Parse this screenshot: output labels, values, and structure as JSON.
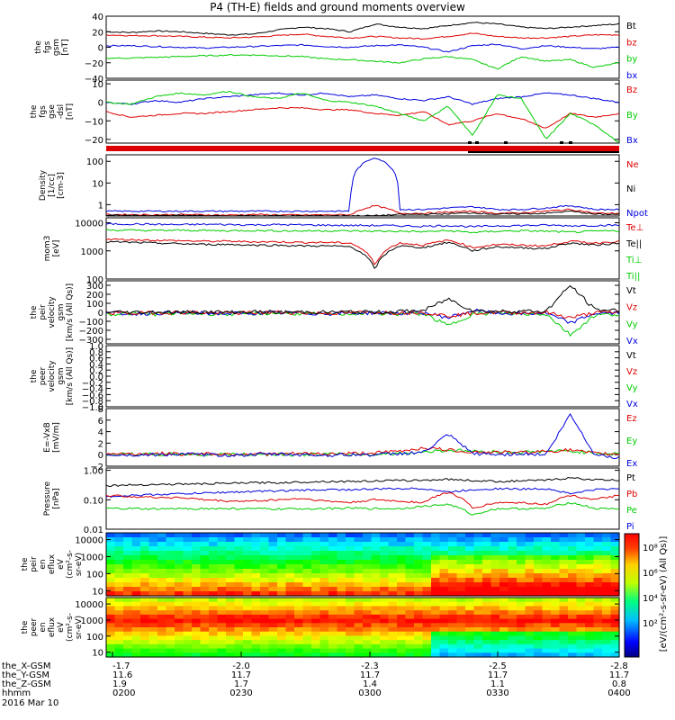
{
  "title": "P4 (TH-E) fields and ground moments overview",
  "footer": {
    "rows": [
      {
        "label": "the_X-GSM",
        "values": [
          "-1.7",
          "-2.0",
          "-2.3",
          "-2.5",
          "-2.8"
        ]
      },
      {
        "label": "the_Y-GSM",
        "values": [
          "11.6",
          "11.7",
          "11.7",
          "11.7",
          "11.7"
        ]
      },
      {
        "label": "the_Z-GSM",
        "values": [
          "1.9",
          "1.7",
          "1.4",
          "1.1",
          "0.8"
        ]
      },
      {
        "label": "hhmm",
        "values": [
          "0200",
          "0230",
          "0300",
          "0330",
          "0400"
        ]
      }
    ],
    "date": "2016 Mar 10"
  },
  "colorbar": {
    "ticks": [
      "10⁸",
      "10⁶",
      "10⁴",
      "10²"
    ],
    "label": "[eV/(cm²-s-sr-eV)]",
    "label_overlay": "[eV/(cm²-s-sr-eV) (All Qs)]"
  },
  "chart_data": [
    {
      "type": "line",
      "ylabel": [
        "the",
        "fgs",
        "gsm",
        "[nT]"
      ],
      "yticks": [
        "40",
        "20",
        "0",
        "−20",
        "−40"
      ],
      "ylim": [
        -40,
        40
      ],
      "legend": [
        {
          "text": "Bt",
          "color": "#000000"
        },
        {
          "text": "bz",
          "color": "#dd0000"
        },
        {
          "text": "by",
          "color": "#00cc00"
        },
        {
          "text": "bx",
          "color": "#0000dd"
        }
      ],
      "series": [
        {
          "color": "#000000",
          "values": [
            20,
            19,
            21,
            20,
            18,
            16,
            17,
            22,
            26,
            24,
            20,
            30,
            26,
            24,
            28,
            32,
            30,
            26,
            24,
            26,
            28,
            30
          ]
        },
        {
          "color": "#dd0000",
          "values": [
            16,
            15,
            15,
            14,
            13,
            12,
            13,
            15,
            17,
            14,
            12,
            14,
            12,
            11,
            14,
            18,
            14,
            12,
            12,
            14,
            16,
            16
          ]
        },
        {
          "color": "#0000dd",
          "values": [
            2,
            2,
            1,
            0,
            -1,
            0,
            1,
            2,
            3,
            1,
            0,
            2,
            3,
            0,
            -6,
            2,
            4,
            -2,
            2,
            0,
            -2,
            0
          ]
        },
        {
          "color": "#00cc00",
          "values": [
            -14,
            -14,
            -13,
            -12,
            -11,
            -10,
            -10,
            -11,
            -12,
            -15,
            -16,
            -18,
            -20,
            -15,
            -12,
            -16,
            -28,
            -12,
            -18,
            -16,
            -26,
            -20
          ]
        }
      ]
    },
    {
      "type": "line",
      "ylabel": [
        "the",
        "fgs",
        "gse",
        "-dsl",
        "[nT]"
      ],
      "yticks": [
        "10",
        "0",
        "−10",
        "−20"
      ],
      "ylim": [
        -22,
        12
      ],
      "legend": [
        {
          "text": "Bz",
          "color": "#dd0000"
        },
        {
          "text": "By",
          "color": "#00cc00"
        },
        {
          "text": "Bx",
          "color": "#0000dd"
        }
      ],
      "series": [
        {
          "color": "#0000dd",
          "values": [
            0,
            -1,
            1,
            0,
            2,
            3,
            4,
            5,
            4,
            5,
            3,
            4,
            2,
            1,
            3,
            -1,
            2,
            3,
            5,
            4,
            2,
            0
          ]
        },
        {
          "color": "#dd0000",
          "values": [
            -5,
            -8,
            -7,
            -6,
            -6,
            -5,
            -4,
            -3,
            -3,
            -4,
            -4,
            -6,
            -7,
            -5,
            -12,
            -10,
            -6,
            -9,
            -14,
            -6,
            -8,
            -6
          ]
        },
        {
          "color": "#00cc00",
          "values": [
            0,
            -1,
            3,
            5,
            4,
            6,
            3,
            2,
            5,
            1,
            0,
            -2,
            -6,
            -10,
            -2,
            -18,
            4,
            2,
            -20,
            -6,
            -12,
            -22
          ]
        }
      ]
    },
    {
      "type": "line",
      "ylabel": [
        "Density",
        "[1/cc]",
        "[cm-3]"
      ],
      "yticks": [
        "100",
        "10",
        "1"
      ],
      "yscale": "log",
      "ylim": [
        0.3,
        200
      ],
      "legend": [
        {
          "text": "Ne",
          "color": "#dd0000"
        },
        {
          "text": "Ni",
          "color": "#000000"
        },
        {
          "text": "Npot",
          "color": "#0000dd"
        }
      ],
      "series": [
        {
          "color": "#0000dd",
          "values": [
            0.5,
            0.5,
            0.5,
            0.5,
            0.5,
            0.5,
            0.5,
            0.5,
            0.5,
            0.5,
            0.5,
            150,
            0.6,
            0.6,
            0.7,
            0.8,
            0.6,
            0.6,
            0.7,
            0.9,
            0.6,
            0.6
          ]
        },
        {
          "color": "#dd0000",
          "values": [
            0.35,
            0.35,
            0.34,
            0.35,
            0.34,
            0.33,
            0.35,
            0.34,
            0.33,
            0.34,
            0.34,
            0.9,
            0.4,
            0.4,
            0.45,
            0.5,
            0.4,
            0.42,
            0.5,
            0.6,
            0.4,
            0.4
          ]
        },
        {
          "color": "#000000",
          "values": [
            0.32,
            0.32,
            0.31,
            0.32,
            0.31,
            0.3,
            0.31,
            0.31,
            0.3,
            0.31,
            0.31,
            0.31,
            0.35,
            0.36,
            0.38,
            0.42,
            0.36,
            0.38,
            0.4,
            0.5,
            0.36,
            0.36
          ]
        }
      ]
    },
    {
      "type": "line",
      "ylabel": [
        "mom3",
        "[eV]"
      ],
      "yticks": [
        "10000",
        "1000",
        "100"
      ],
      "yscale": "log",
      "ylim": [
        100,
        15000
      ],
      "legend": [
        {
          "text": "Te⊥",
          "color": "#dd0000"
        },
        {
          "text": "Te||",
          "color": "#000000"
        },
        {
          "text": "Ti⊥",
          "color": "#00cc00"
        },
        {
          "text": "Ti||",
          "color": "#00cc00"
        }
      ],
      "series": [
        {
          "color": "#0000dd",
          "values": [
            9000,
            9000,
            8800,
            8500,
            8800,
            8600,
            8400,
            8600,
            8400,
            8200,
            8000,
            8000,
            7800,
            7500,
            8000,
            7200,
            7800,
            8000,
            8200,
            7800,
            8000,
            8200
          ]
        },
        {
          "color": "#00cc00",
          "values": [
            5500,
            5400,
            5300,
            5400,
            5300,
            5200,
            5300,
            5200,
            5100,
            5200,
            5100,
            5000,
            5000,
            4800,
            5200,
            4500,
            5000,
            5200,
            5000,
            4600,
            5000,
            5200
          ]
        },
        {
          "color": "#dd0000",
          "values": [
            2600,
            2500,
            2400,
            2300,
            2200,
            2200,
            2100,
            2100,
            2000,
            2000,
            1900,
            300,
            1900,
            1600,
            2400,
            1300,
            1700,
            1600,
            1500,
            2200,
            1900,
            2200
          ]
        },
        {
          "color": "#000000",
          "values": [
            2100,
            2000,
            1900,
            1800,
            1700,
            1700,
            1600,
            1600,
            1500,
            1500,
            1400,
            200,
            1500,
            1300,
            2000,
            1000,
            1400,
            1300,
            1200,
            1900,
            1600,
            1900
          ]
        }
      ]
    },
    {
      "type": "line",
      "ylabel": [
        "the",
        "peir",
        "velocity",
        "gsm",
        "[km/s (All Qs)]"
      ],
      "yticks": [
        "300",
        "200",
        "100",
        "0",
        "−100",
        "−200",
        "−300"
      ],
      "ylim": [
        -350,
        350
      ],
      "legend": [
        {
          "text": "Vt",
          "color": "#000000"
        },
        {
          "text": "Vz",
          "color": "#dd0000"
        },
        {
          "text": "Vy",
          "color": "#00cc00"
        },
        {
          "text": "Vx",
          "color": "#0000dd"
        }
      ],
      "series": [
        {
          "color": "#00cc00",
          "values": [
            -20,
            -15,
            -20,
            -10,
            -15,
            -20,
            -15,
            -10,
            -15,
            -20,
            -15,
            -10,
            -20,
            -15,
            -150,
            -20,
            -10,
            -20,
            -15,
            -250,
            -30,
            -20
          ]
        },
        {
          "color": "#0000dd",
          "values": [
            -10,
            -15,
            -10,
            -5,
            -10,
            -15,
            -10,
            -5,
            -10,
            -15,
            -10,
            -5,
            -10,
            -5,
            -60,
            20,
            -10,
            -15,
            -10,
            -120,
            -10,
            -10
          ]
        },
        {
          "color": "#dd0000",
          "values": [
            -5,
            -10,
            -5,
            0,
            -5,
            -10,
            -5,
            0,
            -5,
            -10,
            -5,
            0,
            -5,
            0,
            -40,
            -10,
            0,
            -5,
            0,
            -60,
            -5,
            0
          ]
        },
        {
          "color": "#000000",
          "values": [
            5,
            0,
            5,
            0,
            5,
            0,
            5,
            0,
            5,
            0,
            5,
            0,
            10,
            20,
            150,
            20,
            10,
            15,
            10,
            300,
            30,
            20
          ]
        }
      ]
    },
    {
      "type": "line",
      "ylabel": [
        "the",
        "peer",
        "velocity",
        "gsm",
        "[km/s (All Qs)]"
      ],
      "yticks": [
        "1.0",
        "0.8",
        "0.6",
        "0.4",
        "0.2",
        "0.0",
        "−0.2",
        "−0.4",
        "−0.6",
        "−0.8",
        "−1.0"
      ],
      "ylim": [
        -1,
        1
      ],
      "legend": [
        {
          "text": "Vt",
          "color": "#000000"
        },
        {
          "text": "Vz",
          "color": "#dd0000"
        },
        {
          "text": "Vy",
          "color": "#00cc00"
        },
        {
          "text": "Vx",
          "color": "#0000dd"
        }
      ],
      "series": []
    },
    {
      "type": "line",
      "ylabel": [
        "E=-VxB",
        "[mV/m]"
      ],
      "yticks": [
        "8",
        "6",
        "4",
        "2",
        "0",
        "−2"
      ],
      "ylim": [
        -2,
        8
      ],
      "legend": [
        {
          "text": "Ez",
          "color": "#dd0000"
        },
        {
          "text": "Ey",
          "color": "#00cc00"
        },
        {
          "text": "Ex",
          "color": "#0000dd"
        }
      ],
      "series": [
        {
          "color": "#00cc00",
          "values": [
            0,
            0.1,
            0,
            0.1,
            0,
            0.1,
            0,
            0.1,
            0,
            0.1,
            0,
            0.1,
            0.2,
            0.5,
            0.8,
            0.6,
            0.5,
            0.4,
            0.6,
            0.6,
            0.3,
            0.1
          ]
        },
        {
          "color": "#dd0000",
          "values": [
            0.2,
            0.1,
            0.2,
            0.1,
            0.2,
            0.1,
            0.2,
            0.1,
            0.2,
            0.1,
            0.2,
            0.3,
            0.6,
            1.2,
            0.8,
            0.5,
            0.4,
            0.4,
            0.6,
            0.8,
            0.2,
            0.1
          ]
        },
        {
          "color": "#0000dd",
          "values": [
            0,
            -0.1,
            0,
            0.1,
            0,
            -0.1,
            0,
            0.1,
            0,
            -0.1,
            0,
            0,
            0.2,
            0.4,
            3.5,
            0.2,
            0,
            0.2,
            0,
            7,
            0,
            -0.5
          ]
        }
      ]
    },
    {
      "type": "line",
      "ylabel": [
        "Pressure",
        "[nPa]"
      ],
      "yticks": [
        "1.00",
        "0.10",
        "0.01"
      ],
      "yscale": "log",
      "ylim": [
        0.01,
        1.2
      ],
      "legend": [
        {
          "text": "Pt",
          "color": "#000000"
        },
        {
          "text": "Pb",
          "color": "#dd0000"
        },
        {
          "text": "Pe",
          "color": "#00cc00"
        },
        {
          "text": "Pi",
          "color": "#0000dd"
        }
      ],
      "series": [
        {
          "color": "#000000",
          "values": [
            0.3,
            0.32,
            0.33,
            0.34,
            0.35,
            0.36,
            0.38,
            0.38,
            0.4,
            0.42,
            0.42,
            0.44,
            0.45,
            0.46,
            0.5,
            0.45,
            0.42,
            0.44,
            0.46,
            0.55,
            0.48,
            0.46
          ]
        },
        {
          "color": "#0000dd",
          "values": [
            0.13,
            0.14,
            0.15,
            0.16,
            0.17,
            0.18,
            0.19,
            0.2,
            0.21,
            0.22,
            0.22,
            0.23,
            0.24,
            0.24,
            0.18,
            0.22,
            0.24,
            0.23,
            0.24,
            0.16,
            0.22,
            0.24
          ]
        },
        {
          "color": "#dd0000",
          "values": [
            0.14,
            0.13,
            0.12,
            0.12,
            0.1,
            0.09,
            0.09,
            0.1,
            0.11,
            0.09,
            0.08,
            0.1,
            0.09,
            0.08,
            0.18,
            0.05,
            0.08,
            0.08,
            0.07,
            0.14,
            0.1,
            0.14
          ]
        },
        {
          "color": "#00cc00",
          "values": [
            0.05,
            0.05,
            0.048,
            0.05,
            0.05,
            0.05,
            0.05,
            0.048,
            0.05,
            0.05,
            0.052,
            0.05,
            0.05,
            0.06,
            0.07,
            0.03,
            0.05,
            0.05,
            0.05,
            0.08,
            0.05,
            0.05
          ]
        }
      ]
    },
    {
      "type": "heatmap",
      "ylabel": [
        "the",
        "peir",
        "en",
        "eflux",
        "eV",
        "(cm²-s-",
        "sr-eV)"
      ],
      "yticks": [
        "10000",
        "1000",
        "100",
        "10"
      ],
      "yscale": "log",
      "ylim": [
        5,
        25000
      ],
      "legend": []
    },
    {
      "type": "heatmap",
      "ylabel": [
        "the",
        "peer",
        "en",
        "eflux",
        "eV",
        "(cm²-s-",
        "sr-eV)"
      ],
      "yticks": [
        "10000",
        "1000",
        "100",
        "10"
      ],
      "yscale": "log",
      "ylim": [
        5,
        25000
      ],
      "legend": []
    }
  ]
}
